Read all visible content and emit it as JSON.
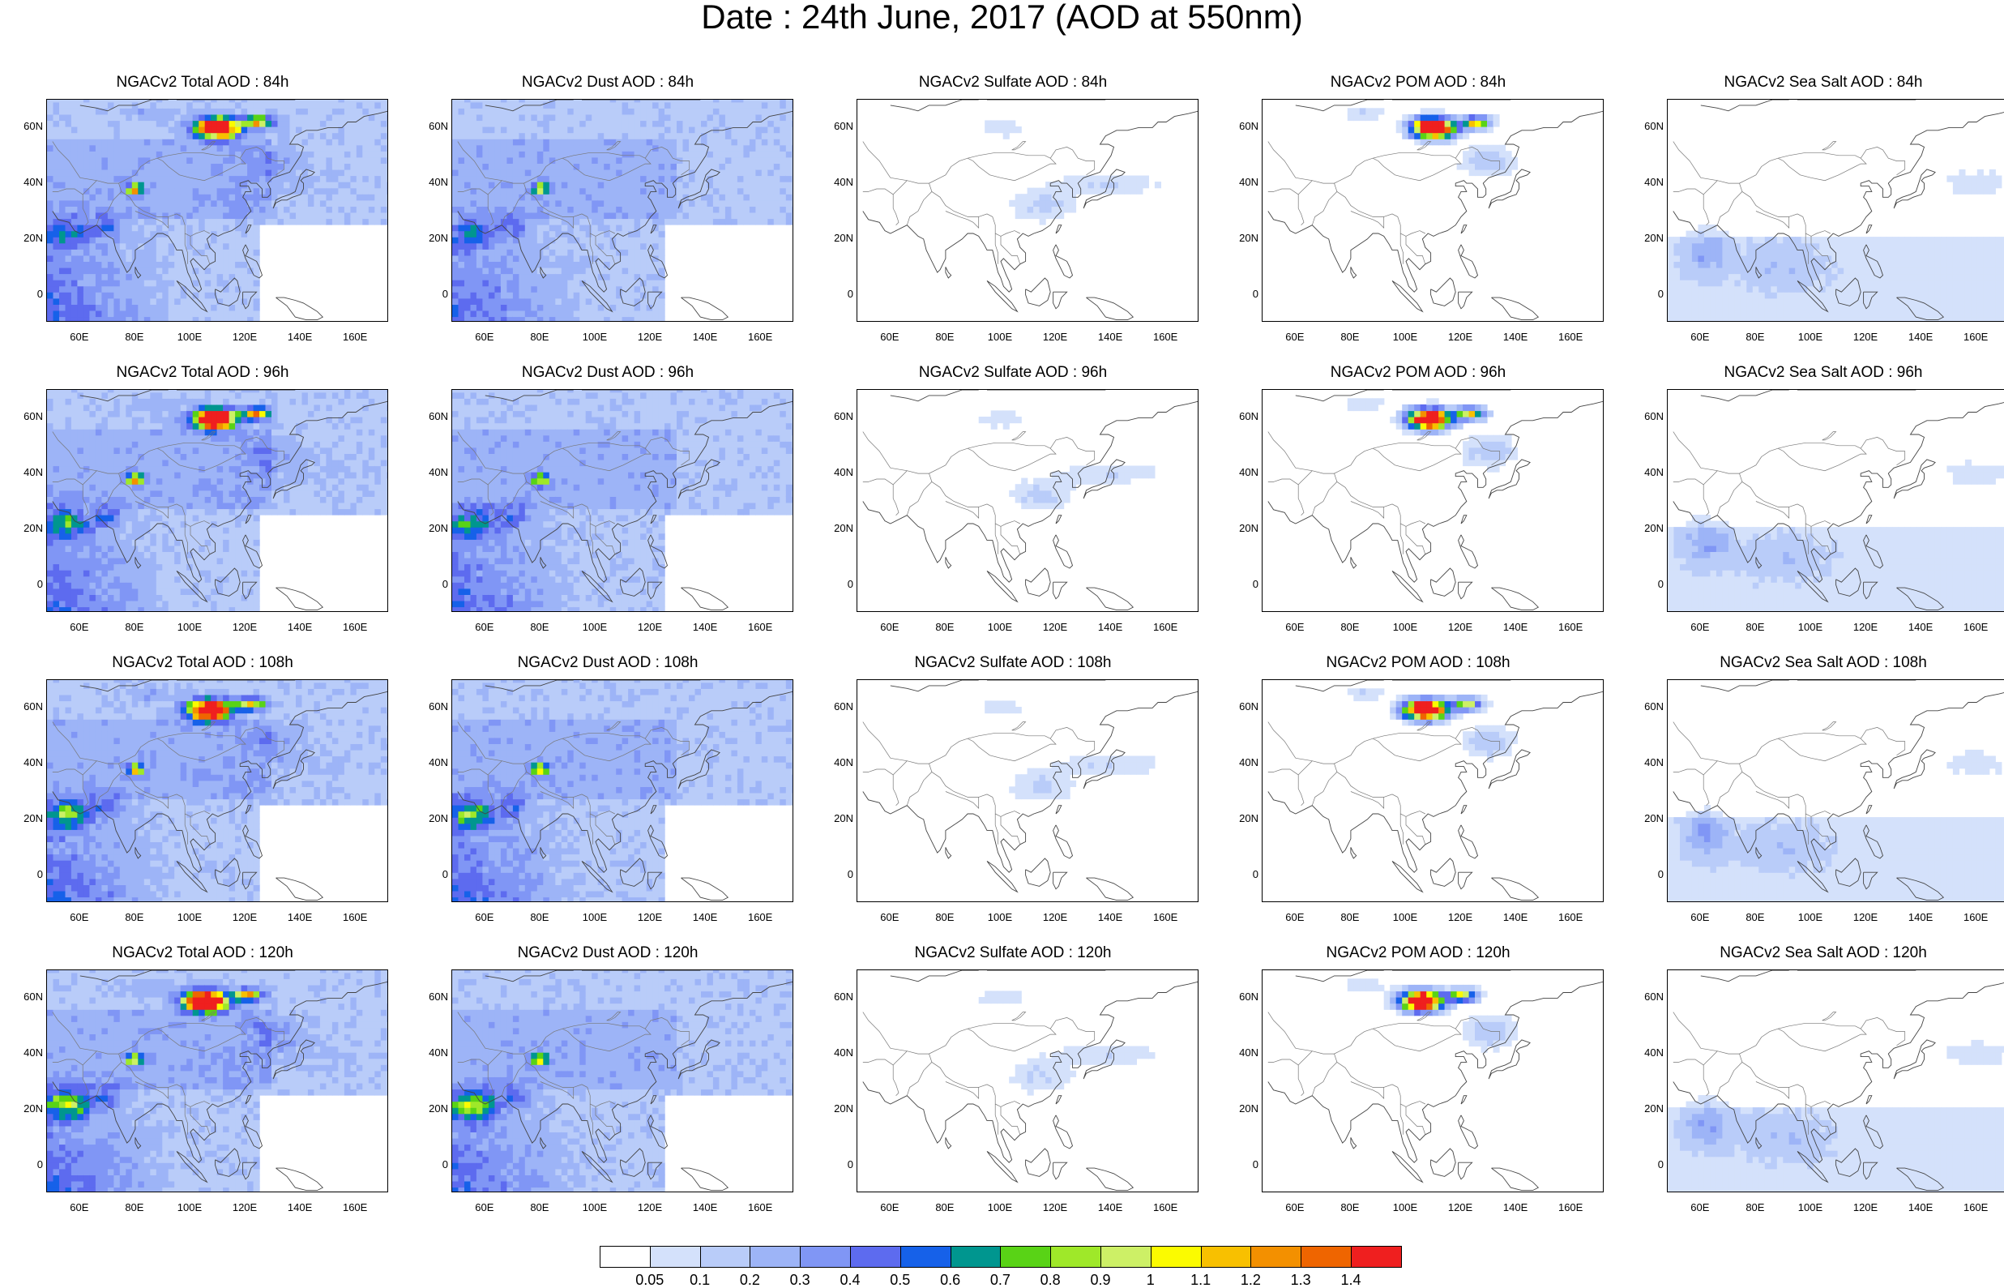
{
  "title": "Date : 24th June, 2017 (AOD at 550nm)",
  "x_ticks": [
    "60E",
    "80E",
    "100E",
    "120E",
    "140E",
    "160E"
  ],
  "y_ticks": [
    "60N",
    "40N",
    "20N",
    "0"
  ],
  "colorbar": {
    "labels": [
      "0.05",
      "0.1",
      "0.2",
      "0.3",
      "0.4",
      "0.5",
      "0.6",
      "0.7",
      "0.8",
      "0.9",
      "1",
      "1.1",
      "1.2",
      "1.3",
      "1.4"
    ],
    "colors": [
      "#ffffff",
      "#d4e1fb",
      "#b9ccf9",
      "#9db4f7",
      "#8096f5",
      "#5d6bef",
      "#1661e9",
      "#00968f",
      "#59d316",
      "#9fe829",
      "#cdf066",
      "#fbfb00",
      "#f8c000",
      "#f39000",
      "#ef6500",
      "#ef1f1f"
    ]
  },
  "panels": [
    {
      "title": "NGACv2 Total AOD : 84h"
    },
    {
      "title": "NGACv2 Dust AOD : 84h"
    },
    {
      "title": "NGACv2 Sulfate AOD : 84h"
    },
    {
      "title": "NGACv2 POM AOD : 84h"
    },
    {
      "title": "NGACv2 Sea Salt AOD : 84h"
    },
    {
      "title": "NGACv2 Total AOD : 96h"
    },
    {
      "title": "NGACv2 Dust AOD : 96h"
    },
    {
      "title": "NGACv2 Sulfate AOD : 96h"
    },
    {
      "title": "NGACv2 POM AOD : 96h"
    },
    {
      "title": "NGACv2 Sea Salt AOD : 96h"
    },
    {
      "title": "NGACv2 Total AOD : 108h"
    },
    {
      "title": "NGACv2 Dust AOD : 108h"
    },
    {
      "title": "NGACv2 Sulfate AOD : 108h"
    },
    {
      "title": "NGACv2 POM AOD : 108h"
    },
    {
      "title": "NGACv2 Sea Salt AOD : 108h"
    },
    {
      "title": "NGACv2 Total AOD : 120h"
    },
    {
      "title": "NGACv2 Dust AOD : 120h"
    },
    {
      "title": "NGACv2 Sulfate AOD : 120h"
    },
    {
      "title": "NGACv2 POM AOD : 120h"
    },
    {
      "title": "NGACv2 Sea Salt  AOD : 120h"
    }
  ]
}
